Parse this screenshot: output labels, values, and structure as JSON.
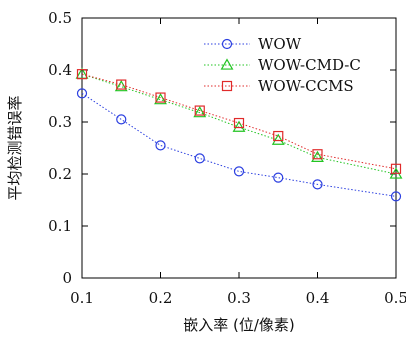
{
  "chart_data": {
    "type": "line",
    "title": "",
    "xlabel": "嵌入率 (位/像素)",
    "ylabel": "平均检测错误率",
    "xlim": [
      0.1,
      0.5
    ],
    "ylim": [
      0,
      0.5
    ],
    "x_ticks": [
      "0.1",
      "0.2",
      "0.3",
      "0.4",
      "0.5"
    ],
    "y_ticks": [
      "0",
      "0.1",
      "0.2",
      "0.3",
      "0.4",
      "0.5"
    ],
    "grid": false,
    "legend_position": "top-right",
    "x": [
      0.1,
      0.15,
      0.2,
      0.25,
      0.3,
      0.35,
      0.4,
      0.5
    ],
    "series": [
      {
        "name": "WOW",
        "color": "#2b3fe0",
        "marker": "circle",
        "values": [
          0.355,
          0.305,
          0.255,
          0.23,
          0.205,
          0.193,
          0.18,
          0.157
        ]
      },
      {
        "name": "WOW-CMD-C",
        "color": "#22c422",
        "marker": "triangle",
        "values": [
          0.392,
          0.368,
          0.343,
          0.318,
          0.29,
          0.265,
          0.232,
          0.2
        ]
      },
      {
        "name": "WOW-CCMS",
        "color": "#e02b2b",
        "marker": "square",
        "values": [
          0.392,
          0.372,
          0.347,
          0.322,
          0.298,
          0.273,
          0.238,
          0.21
        ]
      }
    ]
  }
}
